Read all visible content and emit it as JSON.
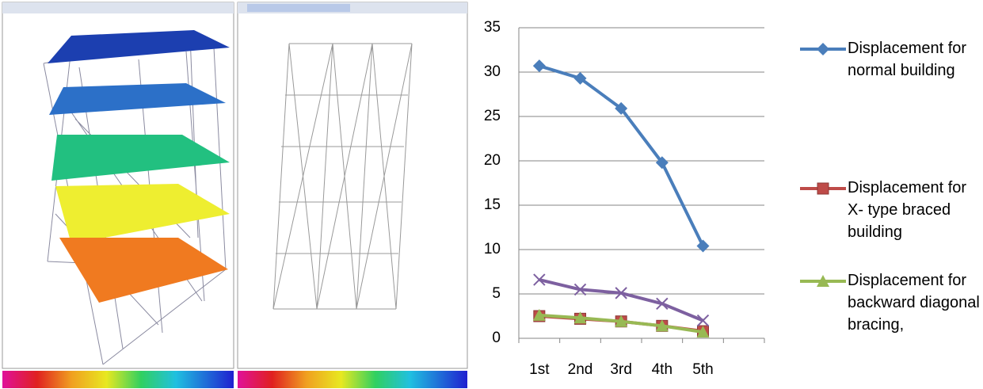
{
  "chart_data": {
    "type": "line",
    "categories": [
      "1st",
      "2nd",
      "3rd",
      "4th",
      "5th",
      null
    ],
    "series": [
      {
        "name": "Displacement for normal building",
        "color": "#4a7ebb",
        "marker": "diamond",
        "values": [
          30.7,
          29.3,
          25.9,
          19.8,
          10.4,
          null
        ]
      },
      {
        "name": "Displacement for X- type braced building",
        "color": "#be4b48",
        "marker": "square",
        "values": [
          2.5,
          2.2,
          1.9,
          1.4,
          0.8,
          null
        ]
      },
      {
        "name": "Displacement for backward diagonal bracing,",
        "color": "#98b954",
        "marker": "triangle",
        "values": [
          2.6,
          2.3,
          1.9,
          1.4,
          0.7,
          null
        ]
      },
      {
        "color": "#7d60a0",
        "marker": "x",
        "values": [
          6.6,
          5.5,
          5.1,
          3.9,
          2.0,
          null
        ]
      }
    ],
    "ylim": [
      0,
      35
    ],
    "yticks": [
      0,
      5,
      10,
      15,
      20,
      25,
      30,
      35
    ],
    "grid": true
  }
}
